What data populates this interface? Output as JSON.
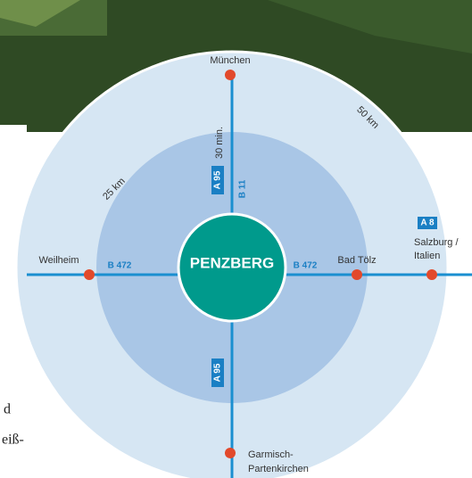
{
  "map": {
    "center": "PENZBERG",
    "rings": [
      "25 km",
      "50 km"
    ],
    "places": {
      "north": "München",
      "west": "Weilheim",
      "east_inner": "Bad Tölz",
      "east_outer": [
        "Salzburg /",
        "Italien"
      ],
      "south": [
        "Garmisch-",
        "Partenkirchen"
      ]
    },
    "roads": {
      "north_motorway": "A 95",
      "north_federal": "B 11",
      "north_time": "30 min.",
      "west": "B 472",
      "east": "B 472",
      "east_motorway": "A 8",
      "south_motorway": "A 95"
    },
    "text_fragments": [
      "d",
      "eiß-"
    ]
  }
}
